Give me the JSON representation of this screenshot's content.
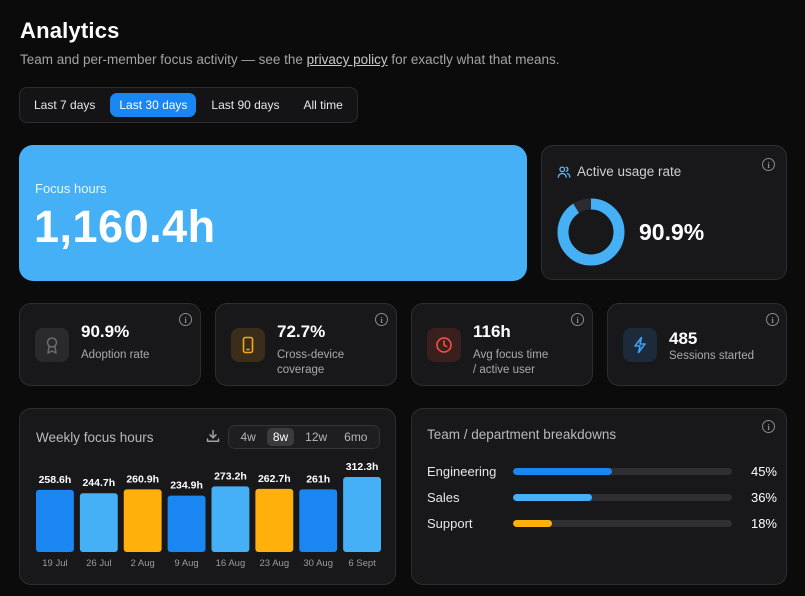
{
  "header": {
    "title": "Analytics",
    "subtitle_before": "Team and per-member focus activity — see the ",
    "subtitle_link": "privacy policy",
    "subtitle_after": " for exactly what that means."
  },
  "range_tabs": [
    {
      "label": "Last 7 days",
      "active": false
    },
    {
      "label": "Last 30 days",
      "active": true
    },
    {
      "label": "Last 90 days",
      "active": false
    },
    {
      "label": "All time",
      "active": false
    }
  ],
  "focus_hours": {
    "label": "Focus hours",
    "value": "1,160.4h"
  },
  "active_usage": {
    "label": "Active usage rate",
    "value": "90.9%",
    "fraction": 0.909,
    "icon": "users-icon"
  },
  "stats": [
    {
      "value": "90.9%",
      "label_line1": "Adoption rate",
      "label_line2": "",
      "icon": "award-icon",
      "icon_color": "#6b6b70",
      "box_color": "#2a2a2d"
    },
    {
      "value": "72.7%",
      "label_line1": "Cross-device",
      "label_line2": "coverage",
      "icon": "phone-icon",
      "icon_color": "#f5a623",
      "box_color": "#3a2e1a"
    },
    {
      "value": "116h",
      "label_line1": "Avg focus time",
      "label_line2": "/ active user",
      "icon": "clock-icon",
      "icon_color": "#ef4b3f",
      "box_color": "#3a1f1f"
    },
    {
      "value": "485",
      "label_line1": "Sessions started",
      "label_line2": "",
      "icon": "bolt-icon",
      "icon_color": "#3ea1f5",
      "box_color": "#1c2a3a"
    }
  ],
  "weekly": {
    "title": "Weekly focus hours",
    "segments": [
      {
        "label": "4w",
        "active": false
      },
      {
        "label": "8w",
        "active": true
      },
      {
        "label": "12w",
        "active": false
      },
      {
        "label": "6mo",
        "active": false
      }
    ]
  },
  "chart_data": {
    "type": "bar",
    "title": "Weekly focus hours",
    "categories": [
      "19 Jul",
      "26 Jul",
      "2 Aug",
      "9 Aug",
      "16 Aug",
      "23 Aug",
      "30 Aug",
      "6 Sept"
    ],
    "values": [
      258.6,
      244.7,
      260.9,
      234.9,
      273.2,
      262.7,
      261,
      312.3
    ],
    "value_labels": [
      "258.6h",
      "244.7h",
      "260.9h",
      "234.9h",
      "273.2h",
      "262.7h",
      "261h",
      "312.3h"
    ],
    "bar_colors": [
      "#1a86f2",
      "#45b0f6",
      "#ffb00a",
      "#1a86f2",
      "#45b0f6",
      "#ffb00a",
      "#1a86f2",
      "#45b0f6"
    ]
  },
  "breakdown": {
    "title": "Team / department breakdowns",
    "rows": [
      {
        "name": "Engineering",
        "pct_label": "45%",
        "fraction": 0.45,
        "color": "#1a86f2"
      },
      {
        "name": "Sales",
        "pct_label": "36%",
        "fraction": 0.36,
        "color": "#45b0f6"
      },
      {
        "name": "Support",
        "pct_label": "18%",
        "fraction": 0.18,
        "color": "#ffb00a"
      }
    ]
  }
}
